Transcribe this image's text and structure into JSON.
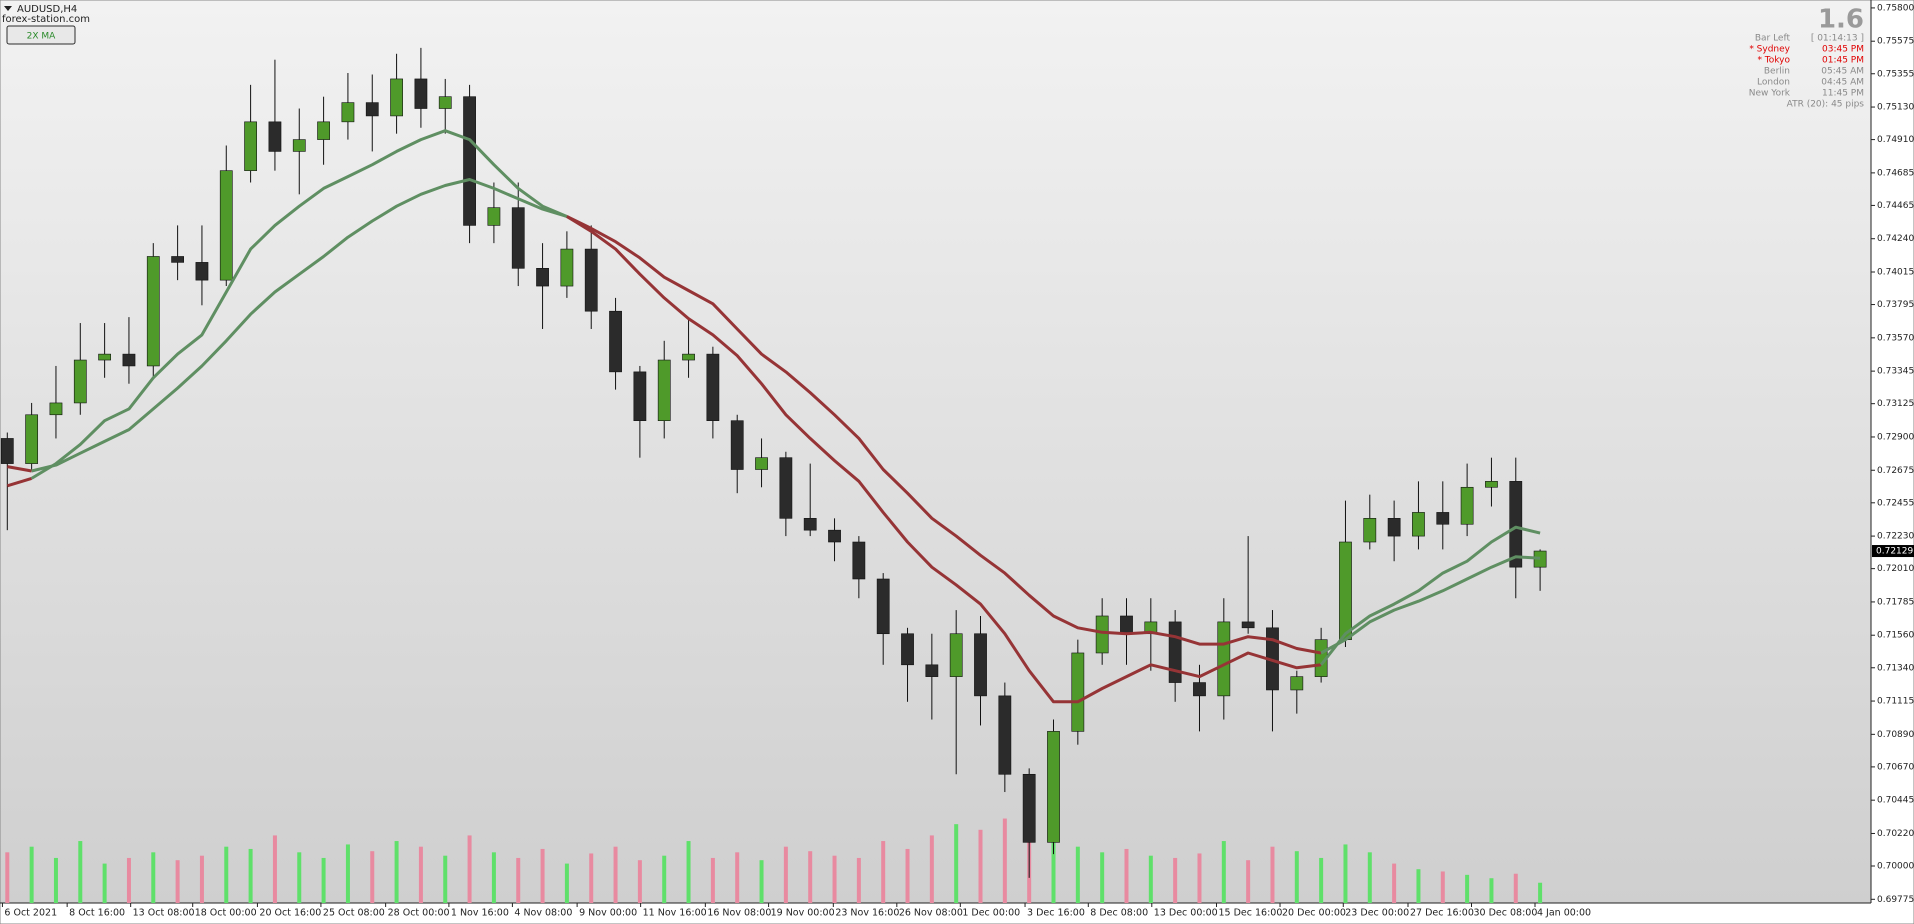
{
  "chart_data": {
    "type": "candlestick",
    "title": "AUDUSD,H4",
    "xlim": [
      -0.3,
      76.6
    ],
    "ylim": [
      0.6975,
      0.7584
    ],
    "grid": false,
    "yticks": [
      {
        "value": 0.758,
        "label": "0.75800"
      },
      {
        "value": 0.75575,
        "label": "0.75575"
      },
      {
        "value": 0.75355,
        "label": "0.75355"
      },
      {
        "value": 0.7513,
        "label": "0.75130"
      },
      {
        "value": 0.7491,
        "label": "0.74910"
      },
      {
        "value": 0.74685,
        "label": "0.74685"
      },
      {
        "value": 0.74465,
        "label": "0.74465"
      },
      {
        "value": 0.7424,
        "label": "0.74240"
      },
      {
        "value": 0.74015,
        "label": "0.74015"
      },
      {
        "value": 0.73795,
        "label": "0.73795"
      },
      {
        "value": 0.7357,
        "label": "0.73570"
      },
      {
        "value": 0.73345,
        "label": "0.73345"
      },
      {
        "value": 0.73125,
        "label": "0.73125"
      },
      {
        "value": 0.729,
        "label": "0.72900"
      },
      {
        "value": 0.72675,
        "label": "0.72675"
      },
      {
        "value": 0.72455,
        "label": "0.72455"
      },
      {
        "value": 0.7223,
        "label": "0.72230"
      },
      {
        "value": 0.7201,
        "label": "0.72010"
      },
      {
        "value": 0.71785,
        "label": "0.71785"
      },
      {
        "value": 0.7156,
        "label": "0.71560"
      },
      {
        "value": 0.7134,
        "label": "0.71340"
      },
      {
        "value": 0.71115,
        "label": "0.71115"
      },
      {
        "value": 0.7089,
        "label": "0.70890"
      },
      {
        "value": 0.7067,
        "label": "0.70670"
      },
      {
        "value": 0.70445,
        "label": "0.70445"
      },
      {
        "value": 0.7022,
        "label": "0.70220"
      },
      {
        "value": 0.7,
        "label": "0.70000"
      },
      {
        "value": 0.69775,
        "label": "0.69775"
      }
    ],
    "xticks": [
      {
        "value": -0.2,
        "label": "6 Oct 2021"
      },
      {
        "value": 2.46,
        "label": "8 Oct 16:00"
      },
      {
        "value": 5.07,
        "label": "13 Oct 08:00"
      },
      {
        "value": 7.62,
        "label": "18 Oct 00:00"
      },
      {
        "value": 10.28,
        "label": "20 Oct 16:00"
      },
      {
        "value": 12.89,
        "label": "25 Oct 08:00"
      },
      {
        "value": 15.55,
        "label": "28 Oct 00:00"
      },
      {
        "value": 18.15,
        "label": "1 Nov 16:00"
      },
      {
        "value": 20.76,
        "label": "4 Nov 08:00"
      },
      {
        "value": 23.42,
        "label": "9 Nov 00:00"
      },
      {
        "value": 26.03,
        "label": "11 Nov 16:00"
      },
      {
        "value": 28.69,
        "label": "16 Nov 08:00"
      },
      {
        "value": 31.29,
        "label": "19 Nov 00:00"
      },
      {
        "value": 33.95,
        "label": "23 Nov 16:00"
      },
      {
        "value": 36.56,
        "label": "26 Nov 08:00"
      },
      {
        "value": 39.17,
        "label": "1 Dec 00:00"
      },
      {
        "value": 41.83,
        "label": "3 Dec 16:00"
      },
      {
        "value": 44.43,
        "label": "8 Dec 08:00"
      },
      {
        "value": 47.04,
        "label": "13 Dec 00:00"
      },
      {
        "value": 49.7,
        "label": "15 Dec 16:00"
      },
      {
        "value": 52.31,
        "label": "20 Dec 00:00"
      },
      {
        "value": 54.91,
        "label": "23 Dec 00:00"
      },
      {
        "value": 57.57,
        "label": "27 Dec 16:00"
      },
      {
        "value": 60.18,
        "label": "30 Dec 08:00"
      },
      {
        "value": 62.79,
        "label": "4 Jan 00:00"
      }
    ],
    "up_color": "#4f9a2a",
    "down_color": "#2b2b2b",
    "wick_color": "#111111",
    "open": [
      0.7289,
      0.7272,
      0.7305,
      0.7313,
      0.7342,
      0.7346,
      0.7338,
      0.7412,
      0.7408,
      0.7396,
      0.747,
      0.7503,
      0.7483,
      0.7491,
      0.7503,
      0.7516,
      0.7507,
      0.7532,
      0.7512,
      0.752,
      0.7433,
      0.7445,
      0.7404,
      0.7392,
      0.7417,
      0.7375,
      0.7334,
      0.7301,
      0.7342,
      0.7346,
      0.7301,
      0.7268,
      0.7276,
      0.7235,
      0.7227,
      0.7219,
      0.7194,
      0.7157,
      0.7136,
      0.7128,
      0.7157,
      0.7115,
      0.7062,
      0.7016,
      0.7091,
      0.7144,
      0.7169,
      0.7157,
      0.7165,
      0.7124,
      0.7115,
      0.7165,
      0.7161,
      0.7119,
      0.7128,
      0.7153,
      0.7219,
      0.7235,
      0.7223,
      0.7239,
      0.7231,
      0.7256,
      0.726,
      0.7202
    ],
    "high": [
      0.7293,
      0.7313,
      0.7338,
      0.7367,
      0.7367,
      0.7371,
      0.7421,
      0.7433,
      0.7433,
      0.7487,
      0.7528,
      0.7545,
      0.7512,
      0.752,
      0.7536,
      0.7535,
      0.7549,
      0.7553,
      0.7532,
      0.7528,
      0.7462,
      0.7462,
      0.7421,
      0.7429,
      0.7433,
      0.7384,
      0.7338,
      0.7355,
      0.737,
      0.7351,
      0.7305,
      0.7289,
      0.728,
      0.7272,
      0.7235,
      0.7223,
      0.7198,
      0.7161,
      0.7157,
      0.7173,
      0.7169,
      0.7124,
      0.7066,
      0.7099,
      0.7153,
      0.7181,
      0.7181,
      0.7181,
      0.7173,
      0.7136,
      0.7181,
      0.7223,
      0.7173,
      0.7132,
      0.7161,
      0.7247,
      0.7251,
      0.7247,
      0.726,
      0.726,
      0.7272,
      0.7276,
      0.7276,
      0.7214
    ],
    "low": [
      0.7227,
      0.7268,
      0.7289,
      0.7305,
      0.733,
      0.7326,
      0.733,
      0.7396,
      0.7379,
      0.7392,
      0.7462,
      0.747,
      0.7454,
      0.7474,
      0.7491,
      0.7483,
      0.7495,
      0.7499,
      0.7495,
      0.7421,
      0.7421,
      0.7392,
      0.7363,
      0.7384,
      0.7363,
      0.7322,
      0.7276,
      0.7289,
      0.733,
      0.7289,
      0.7252,
      0.7256,
      0.7223,
      0.7223,
      0.7206,
      0.7181,
      0.7136,
      0.7111,
      0.7099,
      0.7062,
      0.7095,
      0.705,
      0.6992,
      0.7008,
      0.7082,
      0.7136,
      0.7136,
      0.7132,
      0.7111,
      0.7091,
      0.7099,
      0.7157,
      0.7091,
      0.7103,
      0.7124,
      0.7148,
      0.7214,
      0.7206,
      0.7214,
      0.7214,
      0.7223,
      0.7243,
      0.7181,
      0.7186
    ],
    "close": [
      0.7272,
      0.7305,
      0.7313,
      0.7342,
      0.7346,
      0.7338,
      0.7412,
      0.7408,
      0.7396,
      0.747,
      0.7503,
      0.7483,
      0.7491,
      0.7503,
      0.7516,
      0.7507,
      0.7532,
      0.7512,
      0.752,
      0.7433,
      0.7445,
      0.7404,
      0.7392,
      0.7417,
      0.7375,
      0.7334,
      0.7301,
      0.7342,
      0.7346,
      0.7301,
      0.7268,
      0.7276,
      0.7235,
      0.7227,
      0.7219,
      0.7194,
      0.7157,
      0.7136,
      0.7128,
      0.7157,
      0.7115,
      0.7062,
      0.7016,
      0.7091,
      0.7144,
      0.7169,
      0.7157,
      0.7165,
      0.7124,
      0.7115,
      0.7165,
      0.7161,
      0.7119,
      0.7128,
      0.7153,
      0.7219,
      0.7235,
      0.7223,
      0.7239,
      0.7231,
      0.7256,
      0.726,
      0.7202,
      0.72129
    ],
    "moving_averages": [
      {
        "values": [
          0.7257,
          0.7262,
          0.7272,
          0.7285,
          0.7301,
          0.7309,
          0.733,
          0.7346,
          0.7359,
          0.7388,
          0.7417,
          0.7433,
          0.7446,
          0.7458,
          0.7466,
          0.7474,
          0.7483,
          0.7491,
          0.7497,
          0.7491,
          0.7474,
          0.7458,
          0.7446,
          0.7439,
          0.7429,
          0.7417,
          0.74,
          0.7384,
          0.737,
          0.7359,
          0.7345,
          0.7326,
          0.7305,
          0.7289,
          0.7274,
          0.726,
          0.7239,
          0.7219,
          0.7202,
          0.719,
          0.7177,
          0.7157,
          0.7132,
          0.7111,
          0.7111,
          0.712,
          0.7128,
          0.7136,
          0.7132,
          0.7128,
          0.7136,
          0.7144,
          0.7139,
          0.7134,
          0.7136,
          0.7157,
          0.7169,
          0.7177,
          0.7186,
          0.7198,
          0.7206,
          0.7219,
          0.7229,
          0.7225
        ]
      },
      {
        "values": [
          0.727,
          0.7267,
          0.7271,
          0.7279,
          0.7287,
          0.7295,
          0.7309,
          0.7323,
          0.7338,
          0.7355,
          0.7373,
          0.7388,
          0.74,
          0.7412,
          0.7425,
          0.7436,
          0.7446,
          0.7454,
          0.746,
          0.7464,
          0.7458,
          0.7451,
          0.7444,
          0.7439,
          0.7431,
          0.7422,
          0.7411,
          0.7398,
          0.7389,
          0.738,
          0.7363,
          0.7346,
          0.7334,
          0.732,
          0.7305,
          0.7289,
          0.7268,
          0.7252,
          0.7235,
          0.7223,
          0.721,
          0.7198,
          0.7183,
          0.7169,
          0.7161,
          0.7158,
          0.7157,
          0.7158,
          0.7155,
          0.715,
          0.715,
          0.7155,
          0.7153,
          0.7147,
          0.7144,
          0.7153,
          0.7165,
          0.7173,
          0.7179,
          0.7186,
          0.7194,
          0.7202,
          0.7209,
          0.7208
        ]
      }
    ],
    "ma_bull_color": "#5f8f62",
    "ma_bear_color": "#963436",
    "volume": [
      45,
      50,
      40,
      55,
      35,
      40,
      45,
      38,
      42,
      50,
      48,
      60,
      45,
      40,
      52,
      46,
      55,
      50,
      42,
      60,
      45,
      40,
      48,
      35,
      44,
      50,
      38,
      42,
      55,
      40,
      45,
      38,
      50,
      46,
      42,
      40,
      55,
      48,
      60,
      70,
      65,
      75,
      80,
      60,
      50,
      45,
      48,
      42,
      40,
      44,
      55,
      38,
      50,
      46,
      40,
      52,
      45,
      35,
      30,
      28,
      25,
      22,
      26,
      18
    ],
    "volume_lim": [
      0,
      800
    ],
    "volume_up_color": "#5fe06a",
    "volume_down_color": "#e88aa0",
    "last_price": 0.72129
  },
  "header": {
    "watermark": "forex-station.com",
    "button": "2X MA"
  },
  "info_panel": {
    "big_value": 1.6,
    "rows": [
      {
        "label": "Bar Left",
        "value": "[ 01:14:13 ]",
        "color": "#8a8a8a"
      },
      {
        "label": "* Sydney",
        "value": "03:45 PM",
        "color": "#e00000"
      },
      {
        "label": "* Tokyo",
        "value": "01:45 PM",
        "color": "#e00000"
      },
      {
        "label": "Berlin",
        "value": "05:45 AM",
        "color": "#8a8a8a"
      },
      {
        "label": "London",
        "value": "04:45 AM",
        "color": "#8a8a8a"
      },
      {
        "label": "New York",
        "value": "11:45 PM",
        "color": "#8a8a8a"
      }
    ],
    "atr": "ATR (20): 45 pips"
  }
}
